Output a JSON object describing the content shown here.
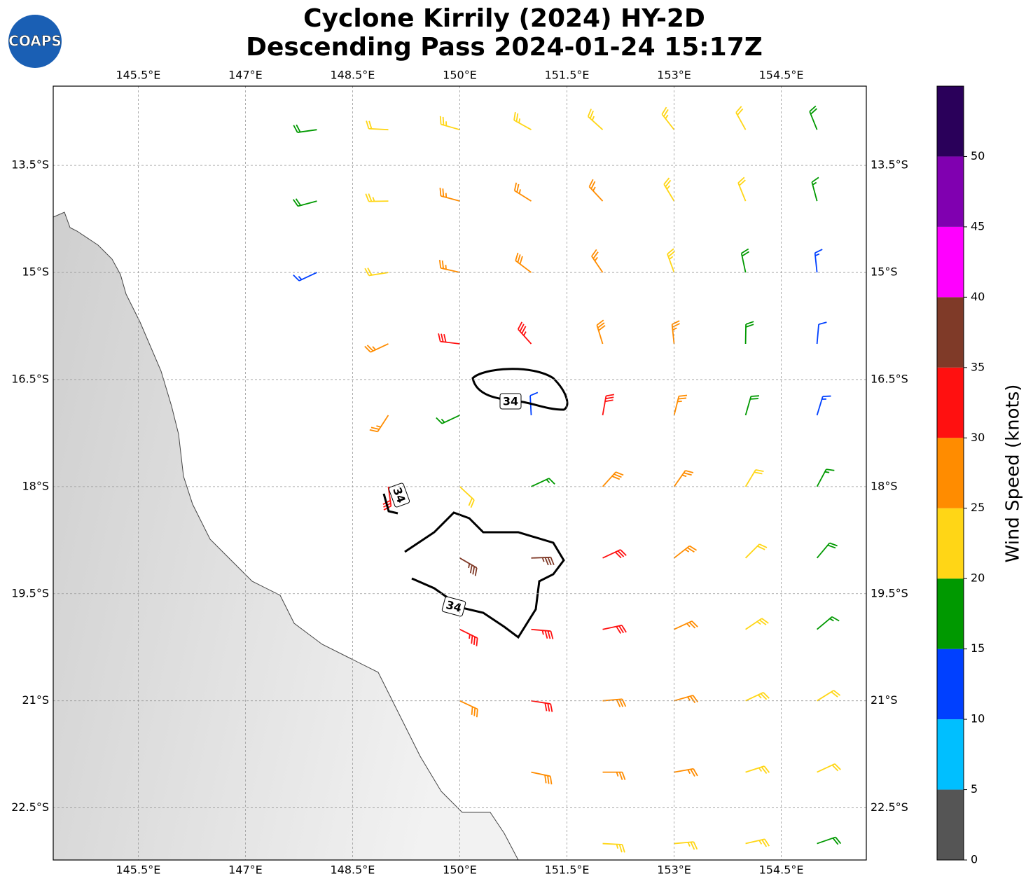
{
  "chart_data": {
    "type": "barb",
    "title": "Cyclone Kirrily (2024) HY-2D",
    "subtitle": "Descending Pass 2024-01-24 15:17Z",
    "logo": "COAPS",
    "xlim": [
      144.31,
      155.69
    ],
    "ylim": [
      -23.23,
      -12.39
    ],
    "xticks": [
      {
        "value": 145.5,
        "label": "145.5°E"
      },
      {
        "value": 147,
        "label": "147°E"
      },
      {
        "value": 148.5,
        "label": "148.5°E"
      },
      {
        "value": 150,
        "label": "150°E"
      },
      {
        "value": 151.5,
        "label": "151.5°E"
      },
      {
        "value": 153,
        "label": "153°E"
      },
      {
        "value": 154.5,
        "label": "154.5°E"
      }
    ],
    "yticks": [
      {
        "value": -13.5,
        "label": "13.5°S"
      },
      {
        "value": -15,
        "label": "15°S"
      },
      {
        "value": -16.5,
        "label": "16.5°S"
      },
      {
        "value": -18,
        "label": "18°S"
      },
      {
        "value": -19.5,
        "label": "19.5°S"
      },
      {
        "value": -21,
        "label": "21°S"
      },
      {
        "value": -22.5,
        "label": "22.5°S"
      }
    ],
    "grid": true,
    "contour_level": 34,
    "colorbar": {
      "label": "Wind Speed (knots)",
      "lim": [
        0,
        55
      ],
      "ticks": [
        0,
        5,
        10,
        15,
        20,
        25,
        30,
        35,
        40,
        45,
        50
      ],
      "colors": [
        "#555555",
        "#00bfff",
        "#0040ff",
        "#009900",
        "#ffd616",
        "#ff8c00",
        "#ff1010",
        "#7f3a28",
        "#ff00ff",
        "#8000b0",
        "#2a005a"
      ]
    },
    "barbs": [
      {
        "lat": -13,
        "lons": [
          148,
          149,
          150,
          151,
          152,
          153,
          154,
          155
        ],
        "speeds": [
          18,
          22,
          23,
          24,
          24,
          23,
          21,
          18
        ],
        "dirs": [
          262,
          273,
          286,
          299,
          312,
          322,
          331,
          338
        ]
      },
      {
        "lat": -14,
        "lons": [
          148,
          149,
          150,
          151,
          152,
          153,
          154,
          155
        ],
        "speeds": [
          18,
          23,
          25,
          27,
          26,
          24,
          20,
          17
        ],
        "dirs": [
          255,
          269,
          285,
          302,
          317,
          329,
          338,
          345
        ]
      },
      {
        "lat": -15,
        "lons": [
          148,
          149,
          150,
          151,
          152,
          153,
          154,
          155
        ],
        "speeds": [
          14,
          22,
          26,
          28,
          27,
          24,
          18,
          13
        ],
        "dirs": [
          245,
          261,
          283,
          307,
          326,
          340,
          348,
          354
        ]
      },
      {
        "lat": -16,
        "lons": [
          149,
          150,
          151,
          152,
          153,
          154,
          155
        ],
        "speeds": [
          26,
          30,
          33,
          28,
          25,
          18,
          12
        ],
        "dirs": [
          245,
          277,
          318,
          343,
          354,
          1,
          5
        ]
      },
      {
        "lat": -17,
        "lons": [
          149,
          150,
          151,
          152,
          153,
          154,
          155
        ],
        "speeds": [
          27,
          15,
          12,
          30,
          26,
          19,
          14
        ],
        "dirs": [
          213,
          245,
          357,
          10,
          14,
          16,
          17
        ]
      },
      {
        "lat": -18,
        "lons": [
          149,
          150,
          151,
          152,
          153,
          154,
          155
        ],
        "speeds": [
          32,
          20,
          17,
          29,
          26,
          22,
          17
        ],
        "dirs": [
          172,
          133,
          65,
          42,
          35,
          31,
          28
        ]
      },
      {
        "lat": -19,
        "lons": [
          150,
          151,
          152,
          153,
          154,
          155
        ],
        "speeds": [
          37,
          36,
          30,
          27,
          22,
          18
        ],
        "dirs": [
          120,
          88,
          65,
          52,
          45,
          40
        ]
      },
      {
        "lat": -20,
        "lons": [
          150,
          151,
          152,
          153,
          154,
          155
        ],
        "speeds": [
          34,
          34,
          31,
          27,
          24,
          17
        ],
        "dirs": [
          116,
          95,
          78,
          65,
          56,
          50
        ]
      },
      {
        "lat": -21,
        "lons": [
          150,
          151,
          152,
          153,
          154,
          155
        ],
        "speeds": [
          29,
          31,
          28,
          26,
          24,
          21
        ],
        "dirs": [
          115,
          99,
          85,
          74,
          65,
          58
        ]
      },
      {
        "lat": -22,
        "lons": [
          151,
          152,
          153,
          154,
          155
        ],
        "speeds": [
          28,
          27,
          25,
          24,
          20
        ],
        "dirs": [
          102,
          90,
          80,
          72,
          65
        ]
      },
      {
        "lat": -23,
        "lons": [
          152,
          153,
          154,
          155
        ],
        "speeds": [
          24,
          24,
          23,
          18
        ],
        "dirs": [
          93,
          85,
          77,
          71
        ]
      }
    ]
  }
}
